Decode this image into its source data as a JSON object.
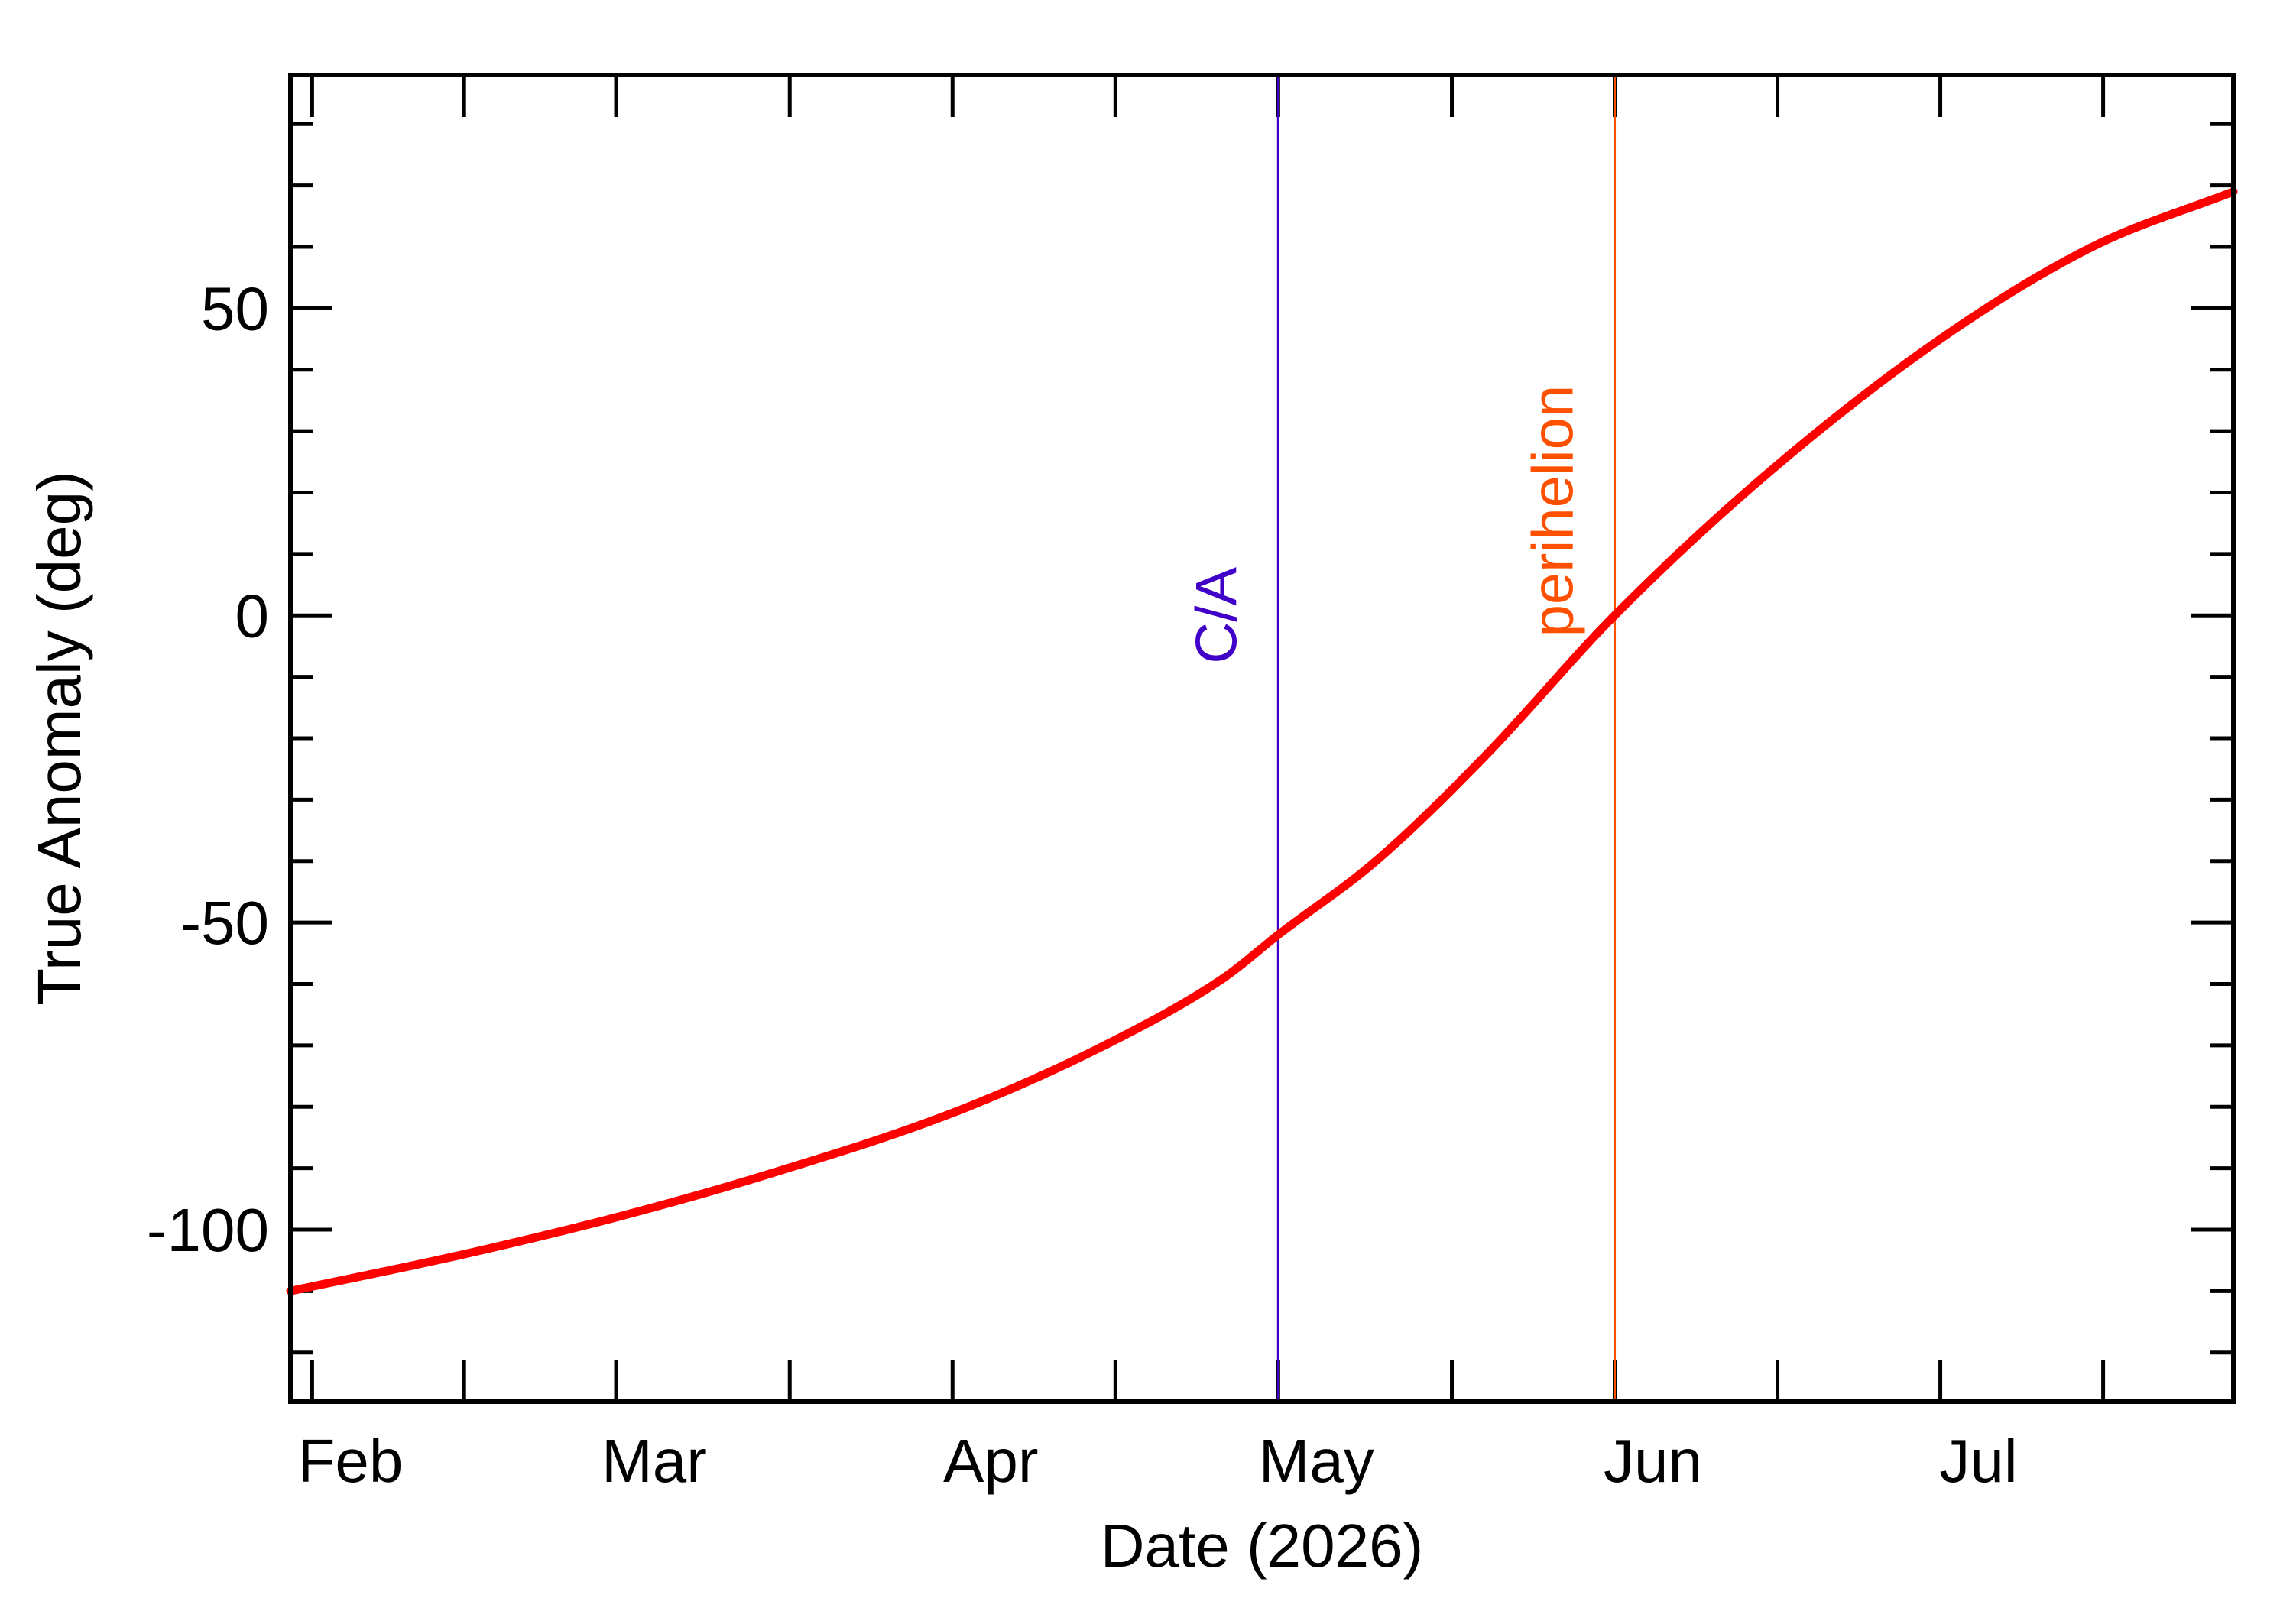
{
  "chart_data": {
    "type": "line",
    "title": "",
    "xlabel": "Date (2026)",
    "ylabel": "True Anomaly (deg)",
    "x_ticks": [
      {
        "label": "Feb",
        "date": "2026-02-01"
      },
      {
        "label": "Mar",
        "date": "2026-03-01"
      },
      {
        "label": "Apr",
        "date": "2026-04-01"
      },
      {
        "label": "May",
        "date": "2026-05-01"
      },
      {
        "label": "Jun",
        "date": "2026-06-01"
      },
      {
        "label": "Jul",
        "date": "2026-07-01"
      }
    ],
    "xlim": [
      "2026-01-30",
      "2026-07-28"
    ],
    "ylim": [
      -128,
      88
    ],
    "y_ticks": [
      {
        "label": "-100",
        "value": -100
      },
      {
        "label": "-50",
        "value": -50
      },
      {
        "label": "0",
        "value": 0
      },
      {
        "label": "50",
        "value": 50
      }
    ],
    "grid": false,
    "series": [
      {
        "color": "#ff0000",
        "points": [
          {
            "x": "2026-01-30",
            "y": -110
          },
          {
            "x": "2026-02-15",
            "y": -104
          },
          {
            "x": "2026-03-01",
            "y": -98
          },
          {
            "x": "2026-03-15",
            "y": -91
          },
          {
            "x": "2026-04-01",
            "y": -81
          },
          {
            "x": "2026-04-15",
            "y": -70
          },
          {
            "x": "2026-04-26",
            "y": -59
          },
          {
            "x": "2026-05-01",
            "y": -52
          },
          {
            "x": "2026-05-10",
            "y": -40
          },
          {
            "x": "2026-05-20",
            "y": -23
          },
          {
            "x": "2026-06-01",
            "y": 0
          },
          {
            "x": "2026-06-15",
            "y": 23
          },
          {
            "x": "2026-07-01",
            "y": 45
          },
          {
            "x": "2026-07-15",
            "y": 60
          },
          {
            "x": "2026-07-28",
            "y": 69
          }
        ]
      }
    ],
    "markers": [
      {
        "label": "C/A",
        "date": "2026-05-01",
        "color": "#4000c8"
      },
      {
        "label": "perihelion",
        "date": "2026-06-01",
        "color": "#ff5000"
      }
    ]
  }
}
